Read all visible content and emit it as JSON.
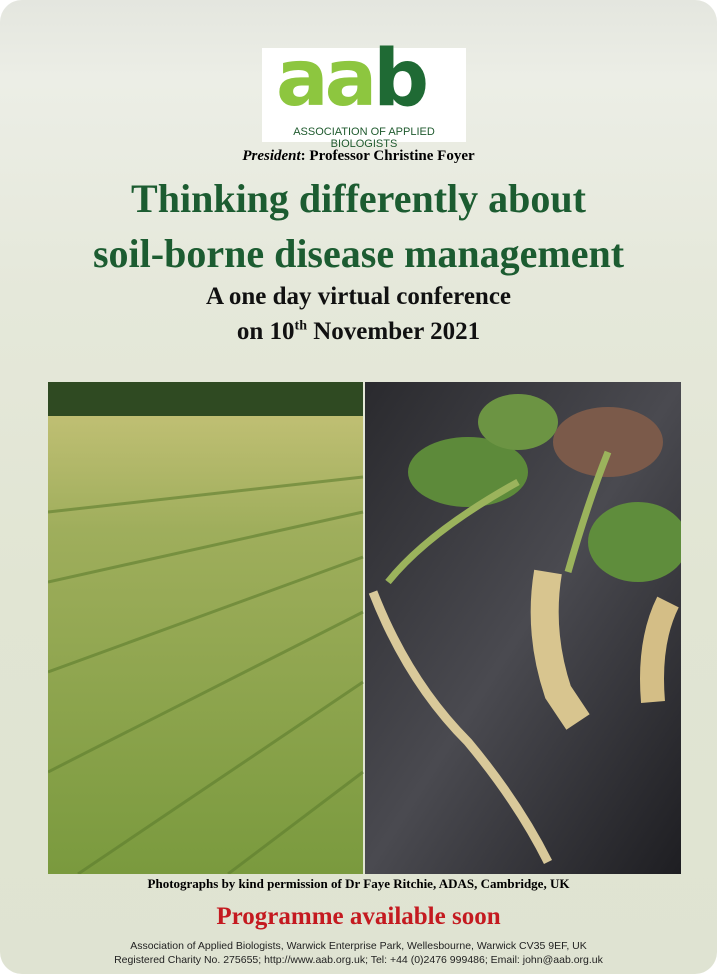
{
  "logo": {
    "letters_light": "aa",
    "letters_dark": "b",
    "name": "ASSOCIATION OF APPLIED BIOLOGISTS"
  },
  "president": {
    "label": "President",
    "text": ": Professor Christine Foyer"
  },
  "title": [
    "Thinking differently about",
    "soil-borne disease management"
  ],
  "subtitle": {
    "line1": "A one day virtual conference",
    "line2_before": "on 10",
    "line2_sup": "th",
    "line2_after": " November 2021"
  },
  "caption": "Photographs by kind permission of Dr Faye Ritchie,  ADAS, Cambridge, UK",
  "programme": "Programme available soon",
  "footer": [
    "Association of Applied Biologists, Warwick Enterprise Park, Wellesbourne, Warwick CV35 9EF, UK",
    "Registered Charity No. 275655; http://www.aab.org.uk; Tel: +44 (0)2476 999486; Email: john@aab.org.uk"
  ]
}
